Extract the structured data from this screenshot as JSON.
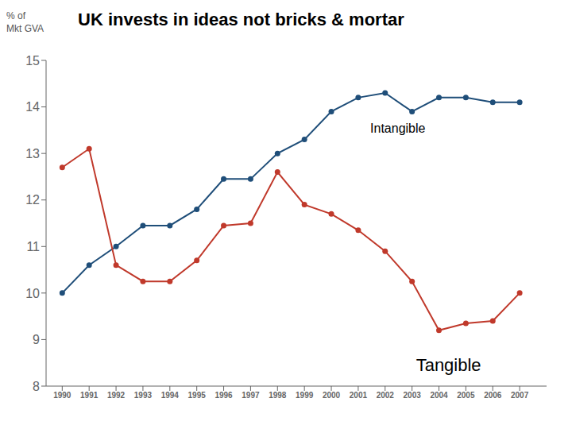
{
  "chart_data": {
    "type": "line",
    "title": "UK invests in ideas not bricks & mortar",
    "ylabel": "% of\nMkt GVA",
    "x": [
      1990,
      1991,
      1992,
      1993,
      1994,
      1995,
      1996,
      1997,
      1998,
      1999,
      2000,
      2001,
      2002,
      2003,
      2004,
      2005,
      2006,
      2007
    ],
    "series": [
      {
        "name": "Intangible",
        "color": "#1F4E79",
        "marker": "circle",
        "values": [
          10.0,
          10.6,
          11.0,
          11.45,
          11.45,
          11.8,
          12.45,
          12.45,
          13.0,
          13.3,
          13.9,
          14.2,
          14.3,
          13.9,
          14.2,
          14.2,
          14.1,
          14.1
        ]
      },
      {
        "name": "Tangible",
        "color": "#C0392B",
        "marker": "circle",
        "values": [
          12.7,
          13.1,
          10.6,
          10.25,
          10.25,
          10.7,
          11.45,
          11.5,
          12.6,
          11.9,
          11.7,
          11.35,
          10.9,
          10.25,
          9.2,
          9.35,
          9.4,
          10.0
        ]
      }
    ],
    "annotations": [
      {
        "text": "Intangible",
        "x": 2001.3,
        "y": 13.55
      },
      {
        "text": "Tangible",
        "x": 2003.0,
        "y": 8.45
      }
    ],
    "xlim": [
      1989.4,
      2008.0
    ],
    "xticks": [
      1990,
      1991,
      1992,
      1993,
      1994,
      1995,
      1996,
      1997,
      1998,
      1999,
      2000,
      2001,
      2002,
      2003,
      2004,
      2005,
      2006,
      2007
    ],
    "ylim": [
      8,
      15
    ],
    "yticks": [
      8,
      9,
      10,
      11,
      12,
      13,
      14,
      15
    ],
    "grid": false
  }
}
